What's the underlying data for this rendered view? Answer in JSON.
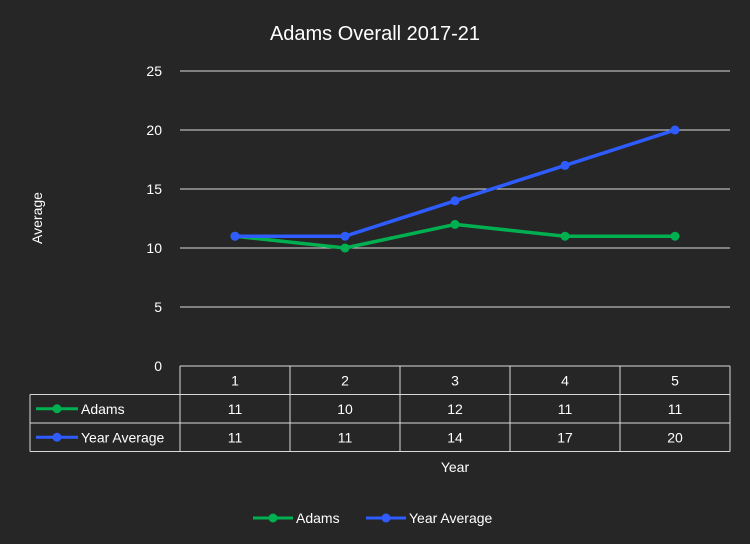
{
  "chart_data": {
    "type": "line",
    "title": "Adams Overall 2017-21",
    "xlabel": "Year",
    "ylabel": "Average",
    "categories": [
      "1",
      "2",
      "3",
      "4",
      "5"
    ],
    "yticks": [
      "0",
      "5",
      "10",
      "15",
      "20",
      "25"
    ],
    "ylim": [
      0,
      25
    ],
    "grid": true,
    "legend_position": "bottom",
    "data_table": true,
    "series": [
      {
        "name": "Adams",
        "values": [
          11,
          10,
          12,
          11,
          11
        ],
        "color": "#00b050"
      },
      {
        "name": "Year Average",
        "values": [
          11,
          11,
          14,
          17,
          20
        ],
        "color": "#2f5cff"
      }
    ]
  },
  "colors": {
    "background": "#262626",
    "grid": "#d9d9d9",
    "text": "#ffffff"
  }
}
